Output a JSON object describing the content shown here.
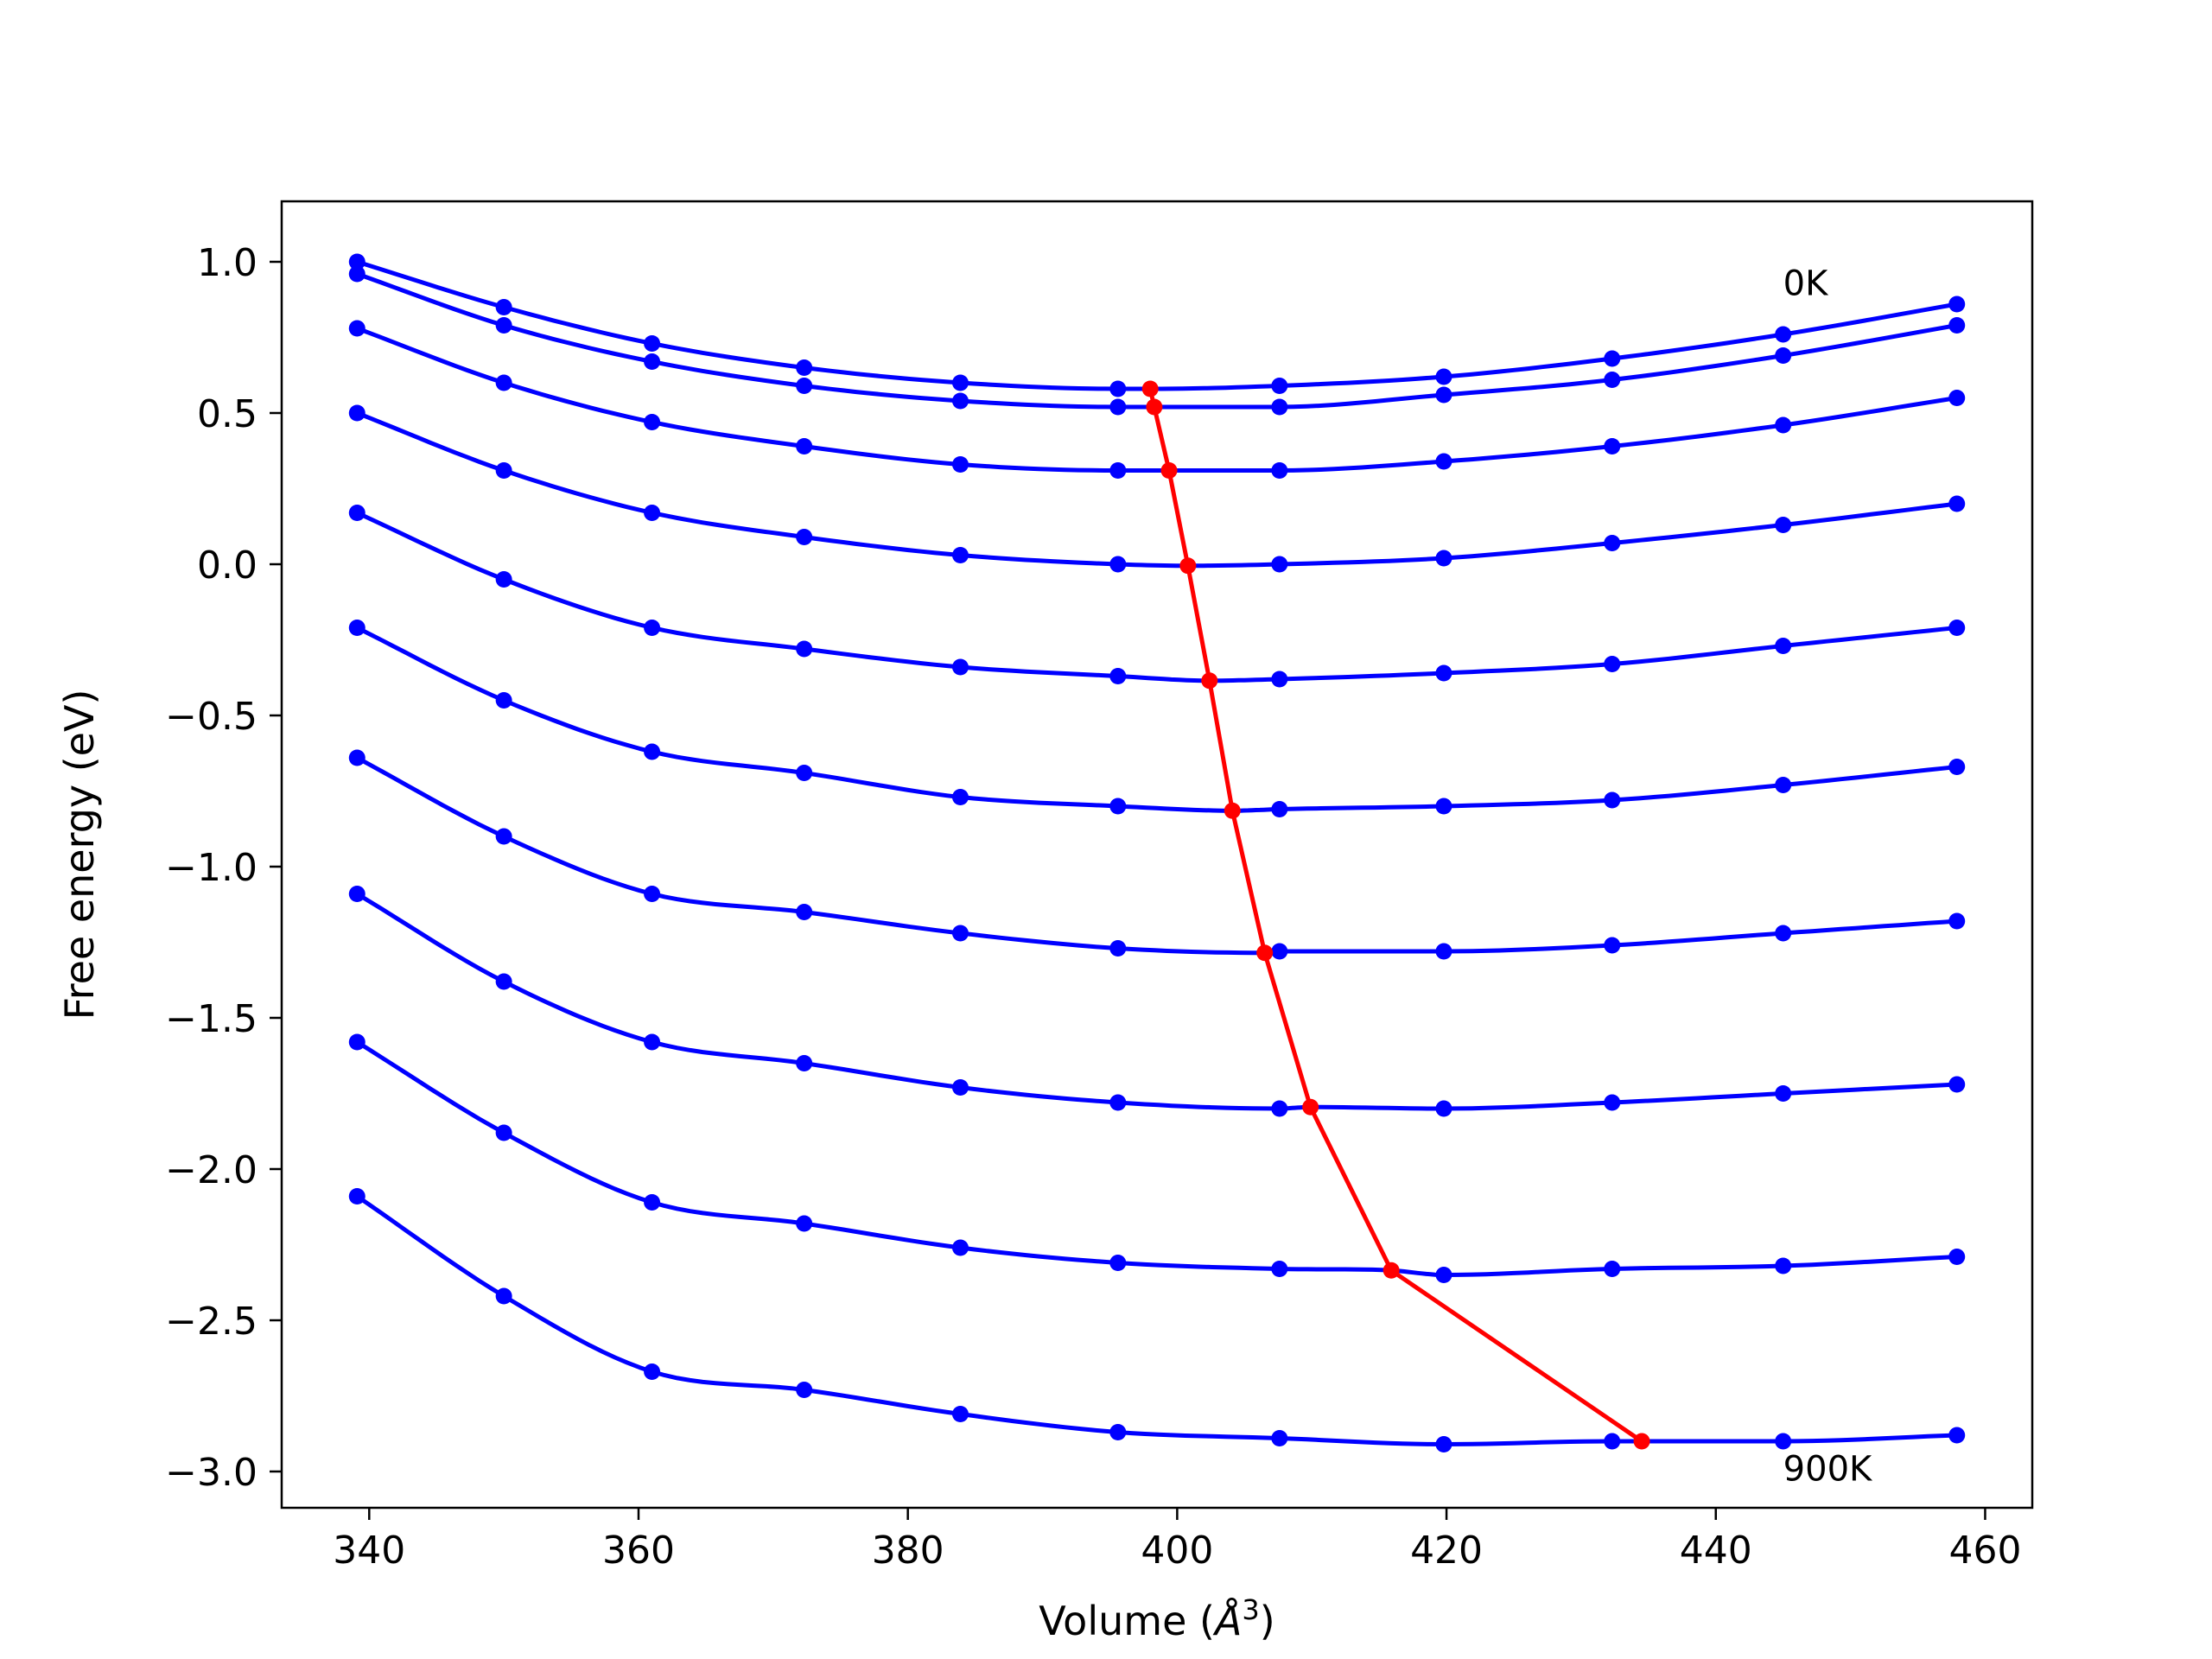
{
  "chart_data": {
    "type": "line",
    "title": "",
    "xlabel": "Volume (",
    "xlabel_symbol": "Å",
    "xlabel_exp": "3",
    "xlabel_close": ")",
    "ylabel": "Free energy (eV)",
    "xlim": [
      333.5,
      463.5
    ],
    "ylim": [
      -3.12,
      1.2
    ],
    "xticks": [
      340,
      360,
      380,
      400,
      420,
      440,
      460
    ],
    "xtick_labels": [
      "340",
      "360",
      "380",
      "400",
      "420",
      "440",
      "460"
    ],
    "yticks": [
      -3.0,
      -2.5,
      -2.0,
      -1.5,
      -1.0,
      -0.5,
      0.0,
      0.5,
      1.0
    ],
    "ytick_labels": [
      "−3.0",
      "−2.5",
      "−2.0",
      "−1.5",
      "−1.0",
      "−0.5",
      "0.0",
      "0.5",
      "1.0"
    ],
    "grid": false,
    "legend": "none",
    "colors": {
      "curves": "#0000ff",
      "minima": "#ff0000",
      "axes": "#000000"
    },
    "annotations": [
      {
        "text": "0K",
        "x": 445,
        "y": 0.93
      },
      {
        "text": "900K",
        "x": 445,
        "y": -2.99
      }
    ],
    "x": [
      339.1,
      350.0,
      361.0,
      372.3,
      383.9,
      395.6,
      407.6,
      419.8,
      432.3,
      445.0,
      457.9
    ],
    "series": [
      {
        "min": [
          398.0,
          0.58
        ],
        "points": [
          1.0,
          0.85,
          0.73,
          0.65,
          0.6,
          0.58,
          0.59,
          0.62,
          0.68,
          0.76,
          0.86
        ]
      },
      {
        "min": [
          398.3,
          0.52
        ],
        "points": [
          0.96,
          0.79,
          0.67,
          0.59,
          0.54,
          0.52,
          0.52,
          0.56,
          0.61,
          0.69,
          0.79
        ]
      },
      {
        "min": [
          399.4,
          0.31
        ],
        "points": [
          0.78,
          0.6,
          0.47,
          0.39,
          0.33,
          0.31,
          0.31,
          0.34,
          0.39,
          0.46,
          0.55
        ]
      },
      {
        "min": [
          400.8,
          -0.005
        ],
        "points": [
          0.5,
          0.31,
          0.17,
          0.09,
          0.03,
          0.0,
          0.0,
          0.02,
          0.07,
          0.13,
          0.2
        ]
      },
      {
        "min": [
          402.4,
          -0.385
        ],
        "points": [
          0.17,
          -0.05,
          -0.21,
          -0.28,
          -0.34,
          -0.37,
          -0.38,
          -0.36,
          -0.33,
          -0.27,
          -0.21
        ]
      },
      {
        "min": [
          404.1,
          -0.815
        ],
        "points": [
          -0.21,
          -0.45,
          -0.62,
          -0.69,
          -0.77,
          -0.8,
          -0.81,
          -0.8,
          -0.78,
          -0.73,
          -0.67
        ]
      },
      {
        "min": [
          406.5,
          -1.285
        ],
        "points": [
          -0.64,
          -0.9,
          -1.09,
          -1.15,
          -1.22,
          -1.27,
          -1.28,
          -1.28,
          -1.26,
          -1.22,
          -1.18
        ]
      },
      {
        "min": [
          409.9,
          -1.795
        ],
        "points": [
          -1.09,
          -1.38,
          -1.58,
          -1.65,
          -1.73,
          -1.78,
          -1.8,
          -1.8,
          -1.78,
          -1.75,
          -1.72
        ]
      },
      {
        "min": [
          415.9,
          -2.335
        ],
        "points": [
          -1.58,
          -1.88,
          -2.11,
          -2.18,
          -2.26,
          -2.31,
          -2.33,
          -2.35,
          -2.33,
          -2.32,
          -2.29
        ]
      },
      {
        "min": [
          434.5,
          -2.9
        ],
        "points": [
          -2.09,
          -2.42,
          -2.67,
          -2.73,
          -2.81,
          -2.87,
          -2.89,
          -2.91,
          -2.9,
          -2.9,
          -2.88
        ]
      }
    ]
  }
}
